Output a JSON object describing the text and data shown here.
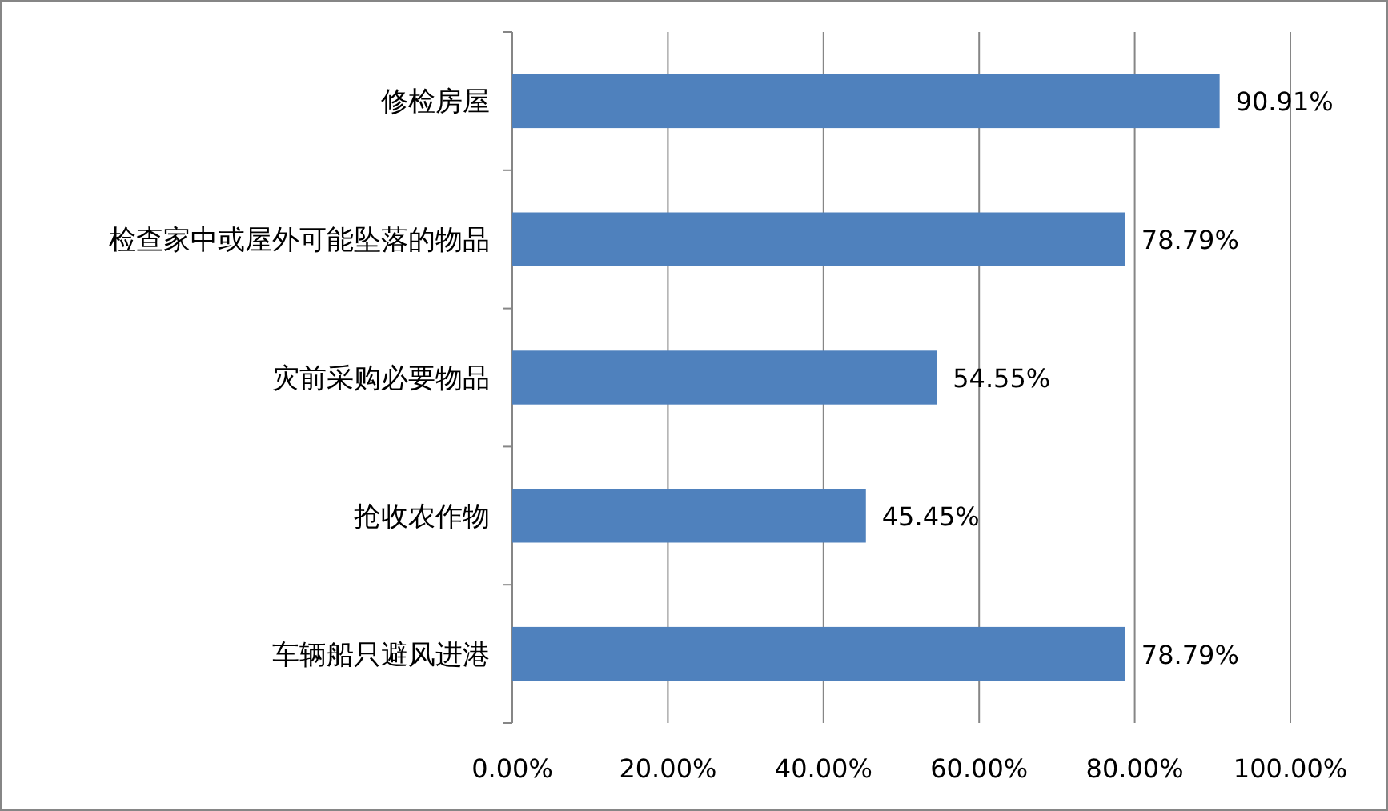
{
  "chart_data": {
    "type": "bar",
    "orientation": "horizontal",
    "categories": [
      "修检房屋",
      "检查家中或屋外可能坠落的物品",
      "灾前采购必要物品",
      "抢收农作物",
      "车辆船只避风进港"
    ],
    "values": [
      90.91,
      78.79,
      54.55,
      45.45,
      78.79
    ],
    "value_labels": [
      "90.91%",
      "78.79%",
      "54.55%",
      "45.45%",
      "78.79%"
    ],
    "color": "#4f81bd",
    "xlim": [
      0,
      100
    ],
    "xticks": [
      {
        "value": 0,
        "label": "0.00%"
      },
      {
        "value": 20,
        "label": "20.00%"
      },
      {
        "value": 40,
        "label": "40.00%"
      },
      {
        "value": 60,
        "label": "60.00%"
      },
      {
        "value": 80,
        "label": "80.00%"
      },
      {
        "value": 100,
        "label": "100.00%"
      }
    ],
    "grid": "x"
  }
}
